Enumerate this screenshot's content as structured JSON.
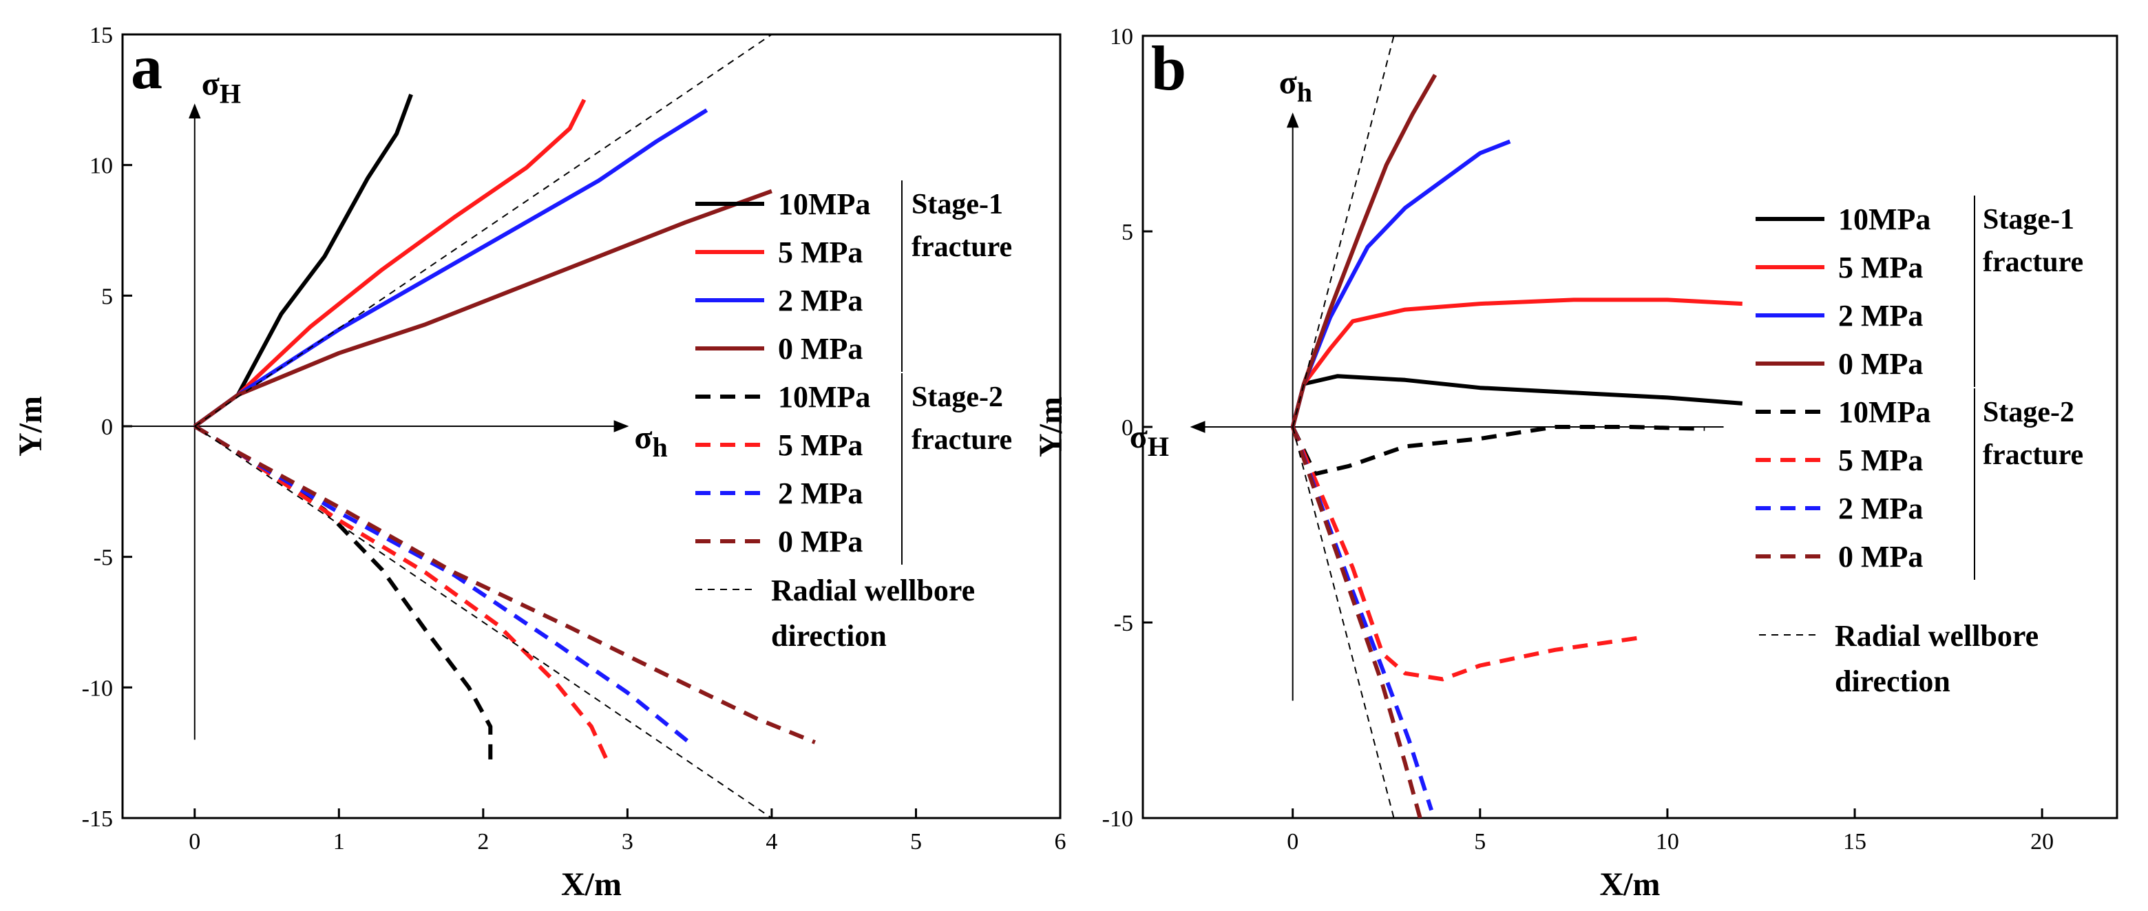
{
  "chart_data": [
    {
      "panel_letter": "a",
      "type": "line",
      "xlabel": "X/m",
      "ylabel": "Y/m",
      "xlim": [
        -0.5,
        6
      ],
      "ylim": [
        -15,
        15
      ],
      "xticks": [
        "0",
        "1",
        "2",
        "3",
        "4",
        "5",
        "6"
      ],
      "yticks": [
        "-15",
        "-10",
        "-5",
        "0",
        "5",
        "10",
        "15"
      ],
      "stress_labels": {
        "vertical": "H",
        "horizontal": "h"
      },
      "legend": {
        "stage1": "Stage-1",
        "stage2": "Stage-2",
        "fracture": "fracture",
        "wellbore_line1": "Radial wellbore",
        "wellbore_line2": "direction"
      },
      "series": [
        {
          "name": "10MPa",
          "color": "#000000",
          "dash": "solid",
          "points": [
            [
              0,
              0
            ],
            [
              0.3,
              1.2
            ],
            [
              0.6,
              4.3
            ],
            [
              0.9,
              6.5
            ],
            [
              1.2,
              9.5
            ],
            [
              1.4,
              11.2
            ],
            [
              1.5,
              12.7
            ]
          ]
        },
        {
          "name": "5  MPa",
          "color": "#ff1a1a",
          "dash": "solid",
          "points": [
            [
              0,
              0
            ],
            [
              0.3,
              1.2
            ],
            [
              0.8,
              3.8
            ],
            [
              1.3,
              6.0
            ],
            [
              1.8,
              8.0
            ],
            [
              2.3,
              9.9
            ],
            [
              2.6,
              11.4
            ],
            [
              2.7,
              12.5
            ]
          ]
        },
        {
          "name": "2  MPa",
          "color": "#1a1aff",
          "dash": "solid",
          "points": [
            [
              0,
              0
            ],
            [
              0.3,
              1.2
            ],
            [
              1.0,
              3.7
            ],
            [
              1.6,
              5.6
            ],
            [
              2.2,
              7.5
            ],
            [
              2.8,
              9.4
            ],
            [
              3.2,
              10.9
            ],
            [
              3.55,
              12.1
            ]
          ]
        },
        {
          "name": "0  MPa",
          "color": "#8b1a1a",
          "dash": "solid",
          "points": [
            [
              0,
              0
            ],
            [
              0.3,
              1.2
            ],
            [
              1.0,
              2.8
            ],
            [
              1.6,
              3.9
            ],
            [
              2.2,
              5.2
            ],
            [
              2.8,
              6.5
            ],
            [
              3.4,
              7.8
            ],
            [
              4.0,
              9.0
            ]
          ]
        },
        {
          "name": "10MPa",
          "color": "#000000",
          "dash": "dashed",
          "points": [
            [
              0,
              0
            ],
            [
              0.3,
              -1.0
            ],
            [
              0.9,
              -3.2
            ],
            [
              1.3,
              -5.5
            ],
            [
              1.6,
              -7.8
            ],
            [
              1.9,
              -10.0
            ],
            [
              2.05,
              -11.5
            ],
            [
              2.05,
              -12.8
            ]
          ]
        },
        {
          "name": "5  MPa",
          "color": "#ff1a1a",
          "dash": "dashed",
          "points": [
            [
              0,
              0
            ],
            [
              0.3,
              -1.0
            ],
            [
              1.0,
              -3.6
            ],
            [
              1.6,
              -5.6
            ],
            [
              2.1,
              -7.6
            ],
            [
              2.5,
              -9.8
            ],
            [
              2.75,
              -11.5
            ],
            [
              2.85,
              -12.7
            ]
          ]
        },
        {
          "name": "2  MPa",
          "color": "#1a1aff",
          "dash": "dashed",
          "points": [
            [
              0,
              0
            ],
            [
              0.3,
              -1.0
            ],
            [
              1.0,
              -3.3
            ],
            [
              1.8,
              -5.7
            ],
            [
              2.5,
              -8.3
            ],
            [
              3.0,
              -10.2
            ],
            [
              3.45,
              -12.2
            ]
          ]
        },
        {
          "name": "0  MPa",
          "color": "#8b1a1a",
          "dash": "dashed",
          "points": [
            [
              0,
              0
            ],
            [
              0.3,
              -1.0
            ],
            [
              1.0,
              -3.1
            ],
            [
              1.8,
              -5.6
            ],
            [
              2.6,
              -7.7
            ],
            [
              3.3,
              -9.6
            ],
            [
              3.9,
              -11.2
            ],
            [
              4.3,
              -12.1
            ]
          ]
        },
        {
          "name": "Radial wellbore direction",
          "color": "#000000",
          "dash": "thin",
          "points": [
            [
              0,
              0
            ],
            [
              4.0,
              15.0
            ]
          ]
        },
        {
          "name": "Radial wellbore direction",
          "color": "#000000",
          "dash": "thin",
          "points": [
            [
              0,
              0
            ],
            [
              4.0,
              -15.0
            ]
          ]
        }
      ]
    },
    {
      "panel_letter": "b",
      "type": "line",
      "xlabel": "X/m",
      "ylabel": "Y/m",
      "xlim": [
        -4,
        22
      ],
      "ylim": [
        -10,
        10
      ],
      "xticks": [
        "0",
        "5",
        "10",
        "15",
        "20"
      ],
      "yticks": [
        "-10",
        "-5",
        "0",
        "5",
        "10"
      ],
      "stress_labels": {
        "vertical": "h",
        "horizontal": "H"
      },
      "legend": {
        "stage1": "Stage-1",
        "stage2": "Stage-2",
        "fracture": "fracture",
        "wellbore_line1": "Radial wellbore",
        "wellbore_line2": "direction"
      },
      "series": [
        {
          "name": "10MPa",
          "color": "#000000",
          "dash": "solid",
          "points": [
            [
              0,
              0
            ],
            [
              0.3,
              1.1
            ],
            [
              1.2,
              1.3
            ],
            [
              3,
              1.2
            ],
            [
              5,
              1.0
            ],
            [
              8,
              0.85
            ],
            [
              10,
              0.75
            ],
            [
              12,
              0.6
            ]
          ]
        },
        {
          "name": "5  MPa",
          "color": "#ff1a1a",
          "dash": "solid",
          "points": [
            [
              0,
              0
            ],
            [
              0.3,
              1.1
            ],
            [
              1.0,
              2.0
            ],
            [
              1.6,
              2.7
            ],
            [
              3,
              3.0
            ],
            [
              5,
              3.15
            ],
            [
              7.5,
              3.25
            ],
            [
              10,
              3.25
            ],
            [
              12,
              3.15
            ]
          ]
        },
        {
          "name": "2  MPa",
          "color": "#1a1aff",
          "dash": "solid",
          "points": [
            [
              0,
              0
            ],
            [
              0.3,
              1.1
            ],
            [
              1.0,
              2.8
            ],
            [
              2.0,
              4.6
            ],
            [
              3.0,
              5.6
            ],
            [
              4.0,
              6.3
            ],
            [
              5.0,
              7.0
            ],
            [
              5.8,
              7.3
            ]
          ]
        },
        {
          "name": "0  MPa",
          "color": "#8b1a1a",
          "dash": "solid",
          "points": [
            [
              0,
              0
            ],
            [
              0.3,
              1.1
            ],
            [
              1.0,
              3.0
            ],
            [
              1.8,
              5.0
            ],
            [
              2.5,
              6.7
            ],
            [
              3.2,
              8.0
            ],
            [
              3.8,
              9.0
            ]
          ]
        },
        {
          "name": "10MPa",
          "color": "#000000",
          "dash": "dashed",
          "points": [
            [
              0,
              0
            ],
            [
              0.6,
              -1.2
            ],
            [
              1.5,
              -1.0
            ],
            [
              3,
              -0.5
            ],
            [
              5,
              -0.3
            ],
            [
              7,
              0.0
            ],
            [
              9,
              0.0
            ],
            [
              11,
              -0.05
            ]
          ]
        },
        {
          "name": "5  MPa",
          "color": "#ff1a1a",
          "dash": "dashed",
          "points": [
            [
              0,
              0
            ],
            [
              0.8,
              -1.8
            ],
            [
              1.6,
              -3.6
            ],
            [
              2.4,
              -5.8
            ],
            [
              3,
              -6.3
            ],
            [
              4,
              -6.45
            ],
            [
              5,
              -6.1
            ],
            [
              7,
              -5.7
            ],
            [
              9.2,
              -5.4
            ]
          ]
        },
        {
          "name": "2  MPa",
          "color": "#1a1aff",
          "dash": "dashed",
          "points": [
            [
              0,
              0
            ],
            [
              0.8,
              -2.1
            ],
            [
              1.6,
              -4.2
            ],
            [
              2.4,
              -6.2
            ],
            [
              3.1,
              -8.0
            ],
            [
              3.7,
              -9.8
            ]
          ]
        },
        {
          "name": "0  MPa",
          "color": "#8b1a1a",
          "dash": "dashed",
          "points": [
            [
              0,
              0
            ],
            [
              0.8,
              -2.2
            ],
            [
              1.6,
              -4.4
            ],
            [
              2.4,
              -6.6
            ],
            [
              3.0,
              -8.6
            ],
            [
              3.4,
              -10
            ]
          ]
        },
        {
          "name": "Radial wellbore direction",
          "color": "#000000",
          "dash": "thin",
          "points": [
            [
              0,
              0
            ],
            [
              2.7,
              10
            ]
          ]
        },
        {
          "name": "Radial wellbore direction",
          "color": "#000000",
          "dash": "thin",
          "points": [
            [
              0,
              0
            ],
            [
              2.7,
              -10
            ]
          ]
        }
      ]
    }
  ]
}
